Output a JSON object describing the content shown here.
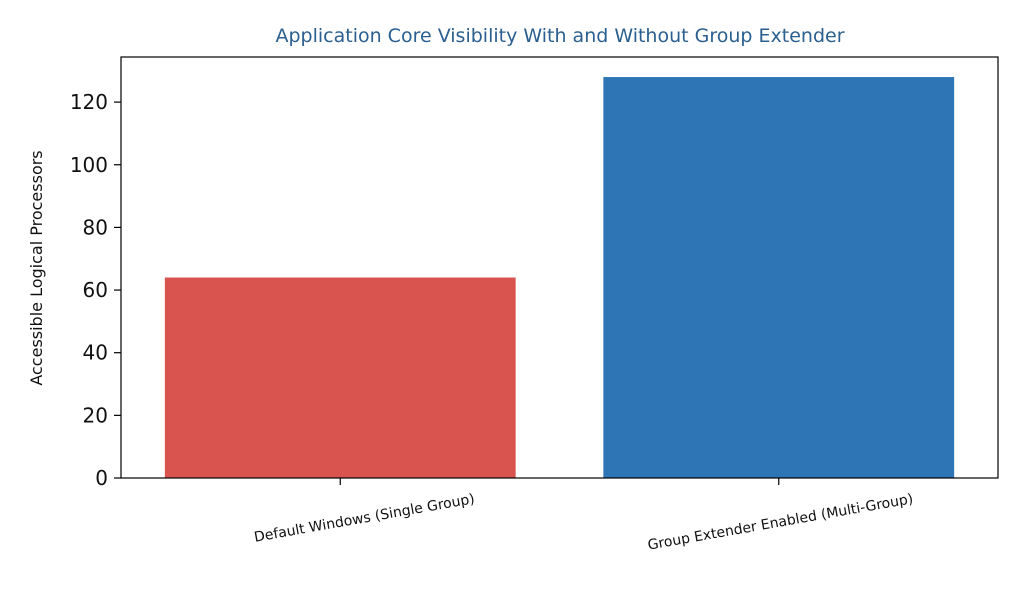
{
  "chart_data": {
    "type": "bar",
    "title": "Application Core Visibility With and Without Group Extender",
    "xlabel": "",
    "ylabel": "Accessible Logical Processors",
    "categories": [
      "Default Windows (Single Group)",
      "Group Extender Enabled (Multi-Group)"
    ],
    "values": [
      64,
      128
    ],
    "ylim": [
      0,
      134.4
    ],
    "yticks": [
      0,
      20,
      40,
      60,
      80,
      100,
      120
    ],
    "bar_colors": [
      "#d9534f",
      "#2e75b6"
    ],
    "title_color": "#2a5f8f",
    "grid": false,
    "legend": "none"
  }
}
